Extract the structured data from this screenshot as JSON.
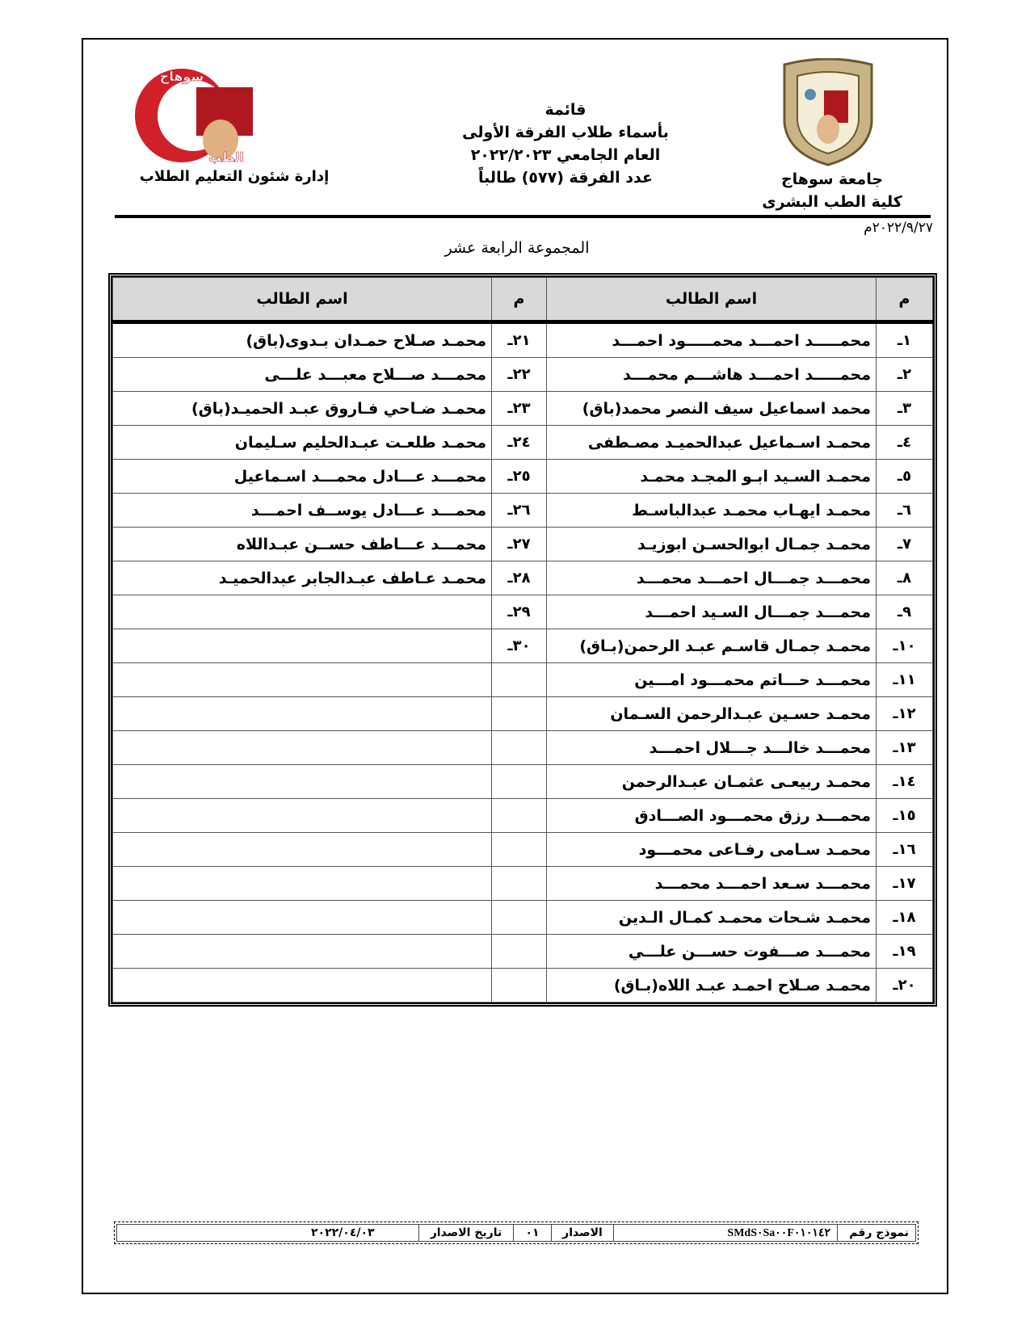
{
  "header": {
    "title_lines": [
      "قائمة",
      "بأسماء طلاب الفرقة الأولى",
      "العام الجامعي ٢٠٢٢/٢٠٢٣",
      "عدد الفرقة (٥٧٧) طالباً"
    ],
    "university": "جامعة سوهاج",
    "faculty": "كلية الطب البشرى",
    "department": "إدارة شئون التعليم الطلاب",
    "left_logo_text": "جامعة سوهاج كلية الطب",
    "seal_text": "جامعة سوهاج",
    "date": "٢٠٢٢/٩/٢٧م",
    "group_title": "المجموعة الرابعة عشر"
  },
  "table": {
    "col_no": "م",
    "col_name": "اسم الطالب",
    "right": [
      {
        "no": "١ـ",
        "name": "محمـــــد احمـــد محمـــــود احمـــد"
      },
      {
        "no": "٢ـ",
        "name": "محمـــــد احمـــد هاشـــم محمـــد"
      },
      {
        "no": "٣ـ",
        "name": "محمد اسماعيل سيف النصر محمد(باق)"
      },
      {
        "no": "٤ـ",
        "name": "محمـد اسـماعيل عبدالحميـد مصـطفى"
      },
      {
        "no": "٥ـ",
        "name": "محمـد السـيد ابـو المجـد محمـد"
      },
      {
        "no": "٦ـ",
        "name": "محمـد ايهـاب محمـد عبدالباسـط"
      },
      {
        "no": "٧ـ",
        "name": "محمـد جمـال ابوالحسـن ابوزيـد"
      },
      {
        "no": "٨ـ",
        "name": "محمـــد جمـــال احمـــد محمـــد"
      },
      {
        "no": "٩ـ",
        "name": "محمـــد جمـــال السـيد احمـــد"
      },
      {
        "no": "١٠ـ",
        "name": "محمـد جمـال قاسـم عبـد الرحمن(بـاق)"
      },
      {
        "no": "١١ـ",
        "name": "محمـــد حـــاتم محمـــود امـــين"
      },
      {
        "no": "١٢ـ",
        "name": "محمـد حسـين عبـدالرحمن السـمان"
      },
      {
        "no": "١٣ـ",
        "name": "محمـــد خالـــد جـــلال احمـــد"
      },
      {
        "no": "١٤ـ",
        "name": "محمـد ربيعـى عثمـان عبـدالرحمن"
      },
      {
        "no": "١٥ـ",
        "name": "محمـــد رزق محمـــود الصـــادق"
      },
      {
        "no": "١٦ـ",
        "name": "محمـد سـامى رفـاعى محمـــود"
      },
      {
        "no": "١٧ـ",
        "name": "محمـــد سـعد احمـــد محمـــد"
      },
      {
        "no": "١٨ـ",
        "name": "محمـد شـحات محمـد كمـال الـدين"
      },
      {
        "no": "١٩ـ",
        "name": "محمـــد صـــفوت حســـن علـــي"
      },
      {
        "no": "٢٠ـ",
        "name": "محمـد صـلاح احمـد عبـد اللاه(بـاق)"
      }
    ],
    "left": [
      {
        "no": "٢١ـ",
        "name": "محمـد صـلاح حمـدان بـدوى(باق)"
      },
      {
        "no": "٢٢ـ",
        "name": "محمـــد صـــلاح معبـــد علـــى"
      },
      {
        "no": "٢٣ـ",
        "name": "محمـد ضـاحي فـاروق عبـد الحميـد(باق)"
      },
      {
        "no": "٢٤ـ",
        "name": "محمـد طلعـت عبـدالحليم سـليمان"
      },
      {
        "no": "٢٥ـ",
        "name": "محمـــد عـــادل محمـــد اسـماعيل"
      },
      {
        "no": "٢٦ـ",
        "name": "محمـــد عـــادل يوســف احمـــد"
      },
      {
        "no": "٢٧ـ",
        "name": "محمـــد عـــاطف حســن عبـداللاه"
      },
      {
        "no": "٢٨ـ",
        "name": "محمـد عـاطف عبـدالجابر عبدالحميـد"
      },
      {
        "no": "٢٩ـ",
        "name": ""
      },
      {
        "no": "٣٠ـ",
        "name": ""
      },
      {
        "no": "",
        "name": ""
      },
      {
        "no": "",
        "name": ""
      },
      {
        "no": "",
        "name": ""
      },
      {
        "no": "",
        "name": ""
      },
      {
        "no": "",
        "name": ""
      },
      {
        "no": "",
        "name": ""
      },
      {
        "no": "",
        "name": ""
      },
      {
        "no": "",
        "name": ""
      },
      {
        "no": "",
        "name": ""
      },
      {
        "no": "",
        "name": ""
      }
    ]
  },
  "footer": {
    "form_label": "نموذج رقم",
    "form_no": "SMdS٠Sa٠٠F٠١٠١٤٢",
    "issue_label": "الاصدار",
    "issue_no": "٠١",
    "issue_date_label": "تاريخ الاصدار",
    "issue_date": "٢٠٢٢/٠٤/٠٣"
  }
}
